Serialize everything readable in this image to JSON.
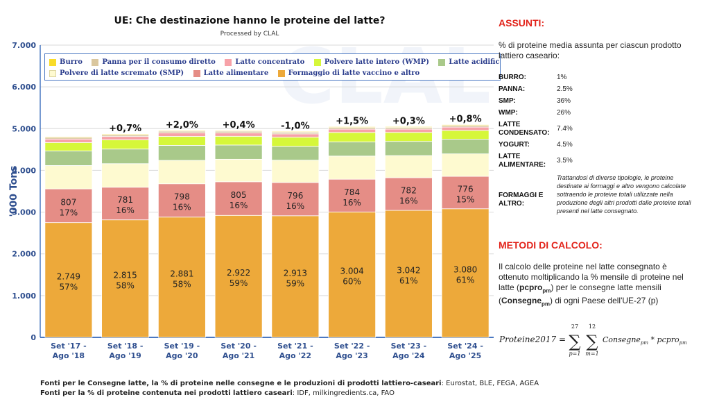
{
  "header": {
    "title": "UE: Che destinazione hanno le proteine del latte?",
    "subtitle": "Processed by CLAL"
  },
  "chart_data": {
    "type": "bar",
    "stacked": true,
    "ylabel": "'000 Tons",
    "ylim": [
      0,
      7000
    ],
    "yticks": [
      0,
      1000,
      2000,
      3000,
      4000,
      5000,
      6000,
      7000
    ],
    "ytick_labels": [
      "0",
      "1.000",
      "2.000",
      "3.000",
      "4.000",
      "5.000",
      "6.000",
      "7.000"
    ],
    "grid": true,
    "legend_position": "top",
    "categories": [
      [
        "Set '17 -",
        "Ago '18"
      ],
      [
        "Set '18 -",
        "Ago '19"
      ],
      [
        "Set '19 -",
        "Ago '20"
      ],
      [
        "Set '20 -",
        "Ago '21"
      ],
      [
        "Set '21 -",
        "Ago '22"
      ],
      [
        "Set '22 -",
        "Ago '23"
      ],
      [
        "Set '23 -",
        "Ago '24"
      ],
      [
        "Set '24 -",
        "Ago '25"
      ]
    ],
    "series": [
      {
        "name": "Formaggio di latte vaccino e altro",
        "color": "#eda93a",
        "values": [
          2749,
          2815,
          2881,
          2922,
          2913,
          3004,
          3042,
          3080
        ],
        "labels": [
          "2.749",
          "2.815",
          "2.881",
          "2.922",
          "2.913",
          "3.004",
          "3.042",
          "3.080"
        ],
        "pct": [
          "57%",
          "58%",
          "58%",
          "59%",
          "59%",
          "60%",
          "61%",
          "61%"
        ]
      },
      {
        "name": "Latte alimentare",
        "color": "#e58d86",
        "values": [
          807,
          781,
          798,
          805,
          796,
          784,
          782,
          776
        ],
        "labels": [
          "807",
          "781",
          "798",
          "805",
          "796",
          "784",
          "782",
          "776"
        ],
        "pct": [
          "17%",
          "16%",
          "16%",
          "16%",
          "16%",
          "16%",
          "16%",
          "15%"
        ]
      },
      {
        "name": "Polvere di latte scremato (SMP)",
        "color": "#fefad0",
        "values": [
          560,
          565,
          560,
          540,
          535,
          555,
          530,
          540
        ]
      },
      {
        "name": "Latte acidificato (yogurt e a",
        "color": "#a9c98a",
        "values": [
          350,
          350,
          360,
          340,
          330,
          340,
          340,
          350
        ]
      },
      {
        "name": "Polvere latte intero (WMP)",
        "color": "#d6f73a",
        "values": [
          200,
          220,
          215,
          210,
          220,
          225,
          215,
          210
        ]
      },
      {
        "name": "Latte concentrato",
        "color": "#f7a2a8",
        "values": [
          85,
          80,
          85,
          80,
          80,
          80,
          80,
          80
        ]
      },
      {
        "name": "Panna per il consumo diretto",
        "color": "#dac79f",
        "values": [
          40,
          40,
          40,
          40,
          40,
          40,
          40,
          40
        ]
      },
      {
        "name": "Burro",
        "color": "#f9dc2a",
        "values": [
          19,
          19,
          19,
          18,
          18,
          19,
          19,
          20
        ]
      }
    ],
    "change_labels": [
      "",
      "+0,7%",
      "+2,0%",
      "+0,4%",
      "-1,0%",
      "+1,5%",
      "+0,3%",
      "+0,8%"
    ]
  },
  "legend": {
    "row1": [
      {
        "label": "Burro",
        "color": "#f9dc2a"
      },
      {
        "label": "Panna per il consumo diretto",
        "color": "#dac79f"
      },
      {
        "label": "Latte concentrato",
        "color": "#f7a2a8"
      },
      {
        "label": "Polvere latte intero (WMP)",
        "color": "#d6f73a"
      },
      {
        "label": "Latte acidificato (yogurt e a",
        "color": "#a9c98a"
      }
    ],
    "row2": [
      {
        "label": "Polvere di latte scremato (SMP)",
        "color": "#fefad0"
      },
      {
        "label": "Latte alimentare",
        "color": "#e58d86"
      },
      {
        "label": "Formaggio di latte vaccino e altro",
        "color": "#eda93a"
      }
    ]
  },
  "sources": {
    "line1_bold": "Fonti per le Consegne latte, la % di proteine nelle consegne e le produzioni di prodotti lattiero-caseari",
    "line1_rest": ": Eurostat, BLE, FEGA, AGEA",
    "line2_bold": "Fonti per la % di proteine contenuta nei prodotti lattiero caseari",
    "line2_rest": ": IDF, milkingredients.ca, FAO"
  },
  "assunti": {
    "heading": "ASSUNTI:",
    "intro": "% di proteine media assunta per ciascun prodotto lattiero caseario:",
    "rows": [
      {
        "key": "BURRO:",
        "value": "1%"
      },
      {
        "key": "PANNA:",
        "value": "2.5%"
      },
      {
        "key": "SMP:",
        "value": "36%"
      },
      {
        "key": "WMP:",
        "value": "26%"
      },
      {
        "key": "LATTE CONDENSATO:",
        "value": "7.4%"
      },
      {
        "key": "YOGURT:",
        "value": "4.5%"
      },
      {
        "key": "LATTE ALIMENTARE:",
        "value": "3.5%"
      },
      {
        "key": "FORMAGGI E ALTRO:",
        "value": ""
      }
    ],
    "note": "Trattandosi di diverse tipologie, le proteine destinate ai formaggi e altro vengono calcolate sottraendo le proteine totali utilizzate nella produzione degli altri prodotti dalle proteine totali presenti nel latte consegnato."
  },
  "metodi": {
    "heading": "METODI DI CALCOLO:",
    "text_a": "Il calcolo delle proteine nel latte consegnato è ottenuto moltiplicando la % mensile di proteine nel latte (",
    "term_a": "pcpro",
    "sub_a": "pm",
    "text_b": ") per le consegne latte mensili (",
    "term_b": "Consegne",
    "sub_b": "pm",
    "text_c": ") di ogni Paese dell'UE-27 (p)",
    "formula_lhs": "Proteine2017 =",
    "formula_sum1_top": "27",
    "formula_sum1_bottom": "p=1",
    "formula_sum2_top": "12",
    "formula_sum2_bottom": "m=1",
    "formula_body": "Consegne",
    "formula_body_sub": "pm",
    "formula_times": " * pcpro",
    "formula_times_sub": "pm"
  }
}
